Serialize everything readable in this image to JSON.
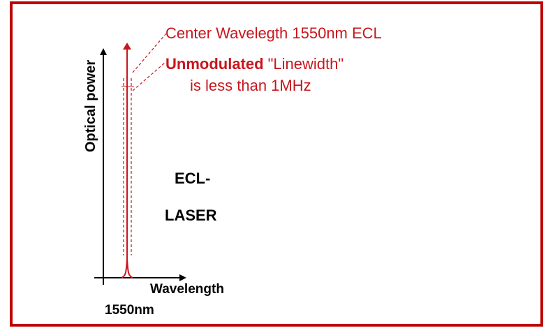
{
  "annotation": {
    "line1": "Center Wavelegth 1550nm ECL",
    "line2_bold": "Unmodulated",
    "line2_rest": "\"Linewidth\"",
    "line3": "is less than 1MHz"
  },
  "axes": {
    "y_label": "Optical power",
    "x_label": "Wavelength",
    "x_marker": "1550nm"
  },
  "device": {
    "line1": "ECL-",
    "line2": "LASER"
  }
}
